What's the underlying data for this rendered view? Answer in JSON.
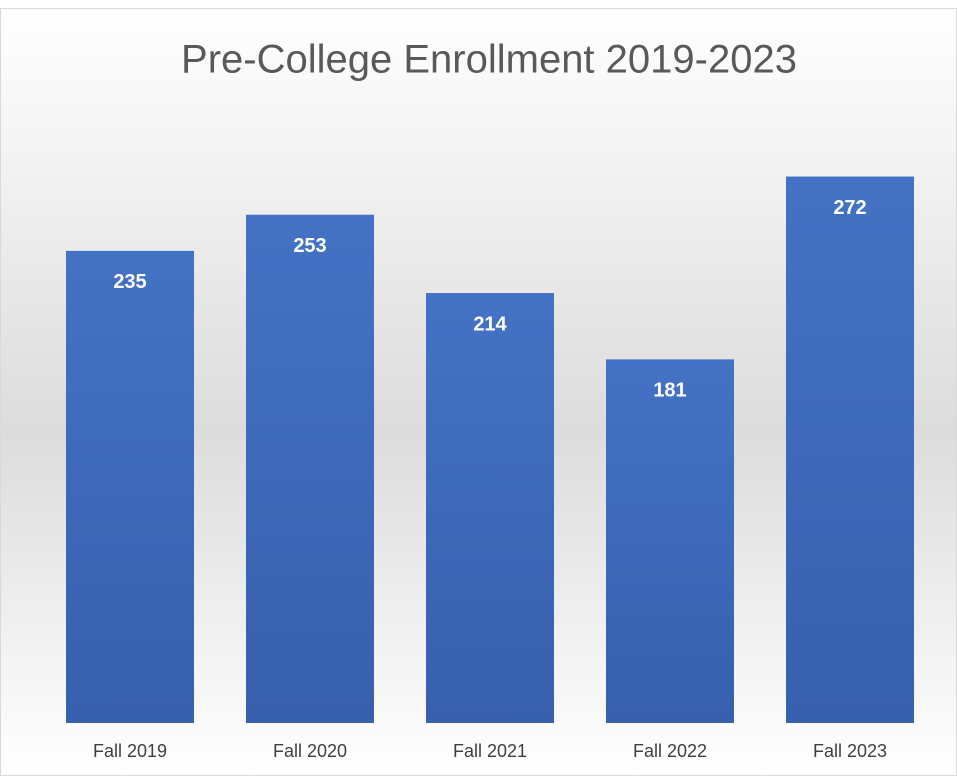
{
  "chart_data": {
    "type": "bar",
    "title": "Pre-College Enrollment 2019-2023",
    "categories": [
      "Fall 2019",
      "Fall 2020",
      "Fall 2021",
      "Fall 2022",
      "Fall 2023"
    ],
    "values": [
      235,
      253,
      214,
      181,
      272
    ],
    "color": "#4472c4"
  }
}
